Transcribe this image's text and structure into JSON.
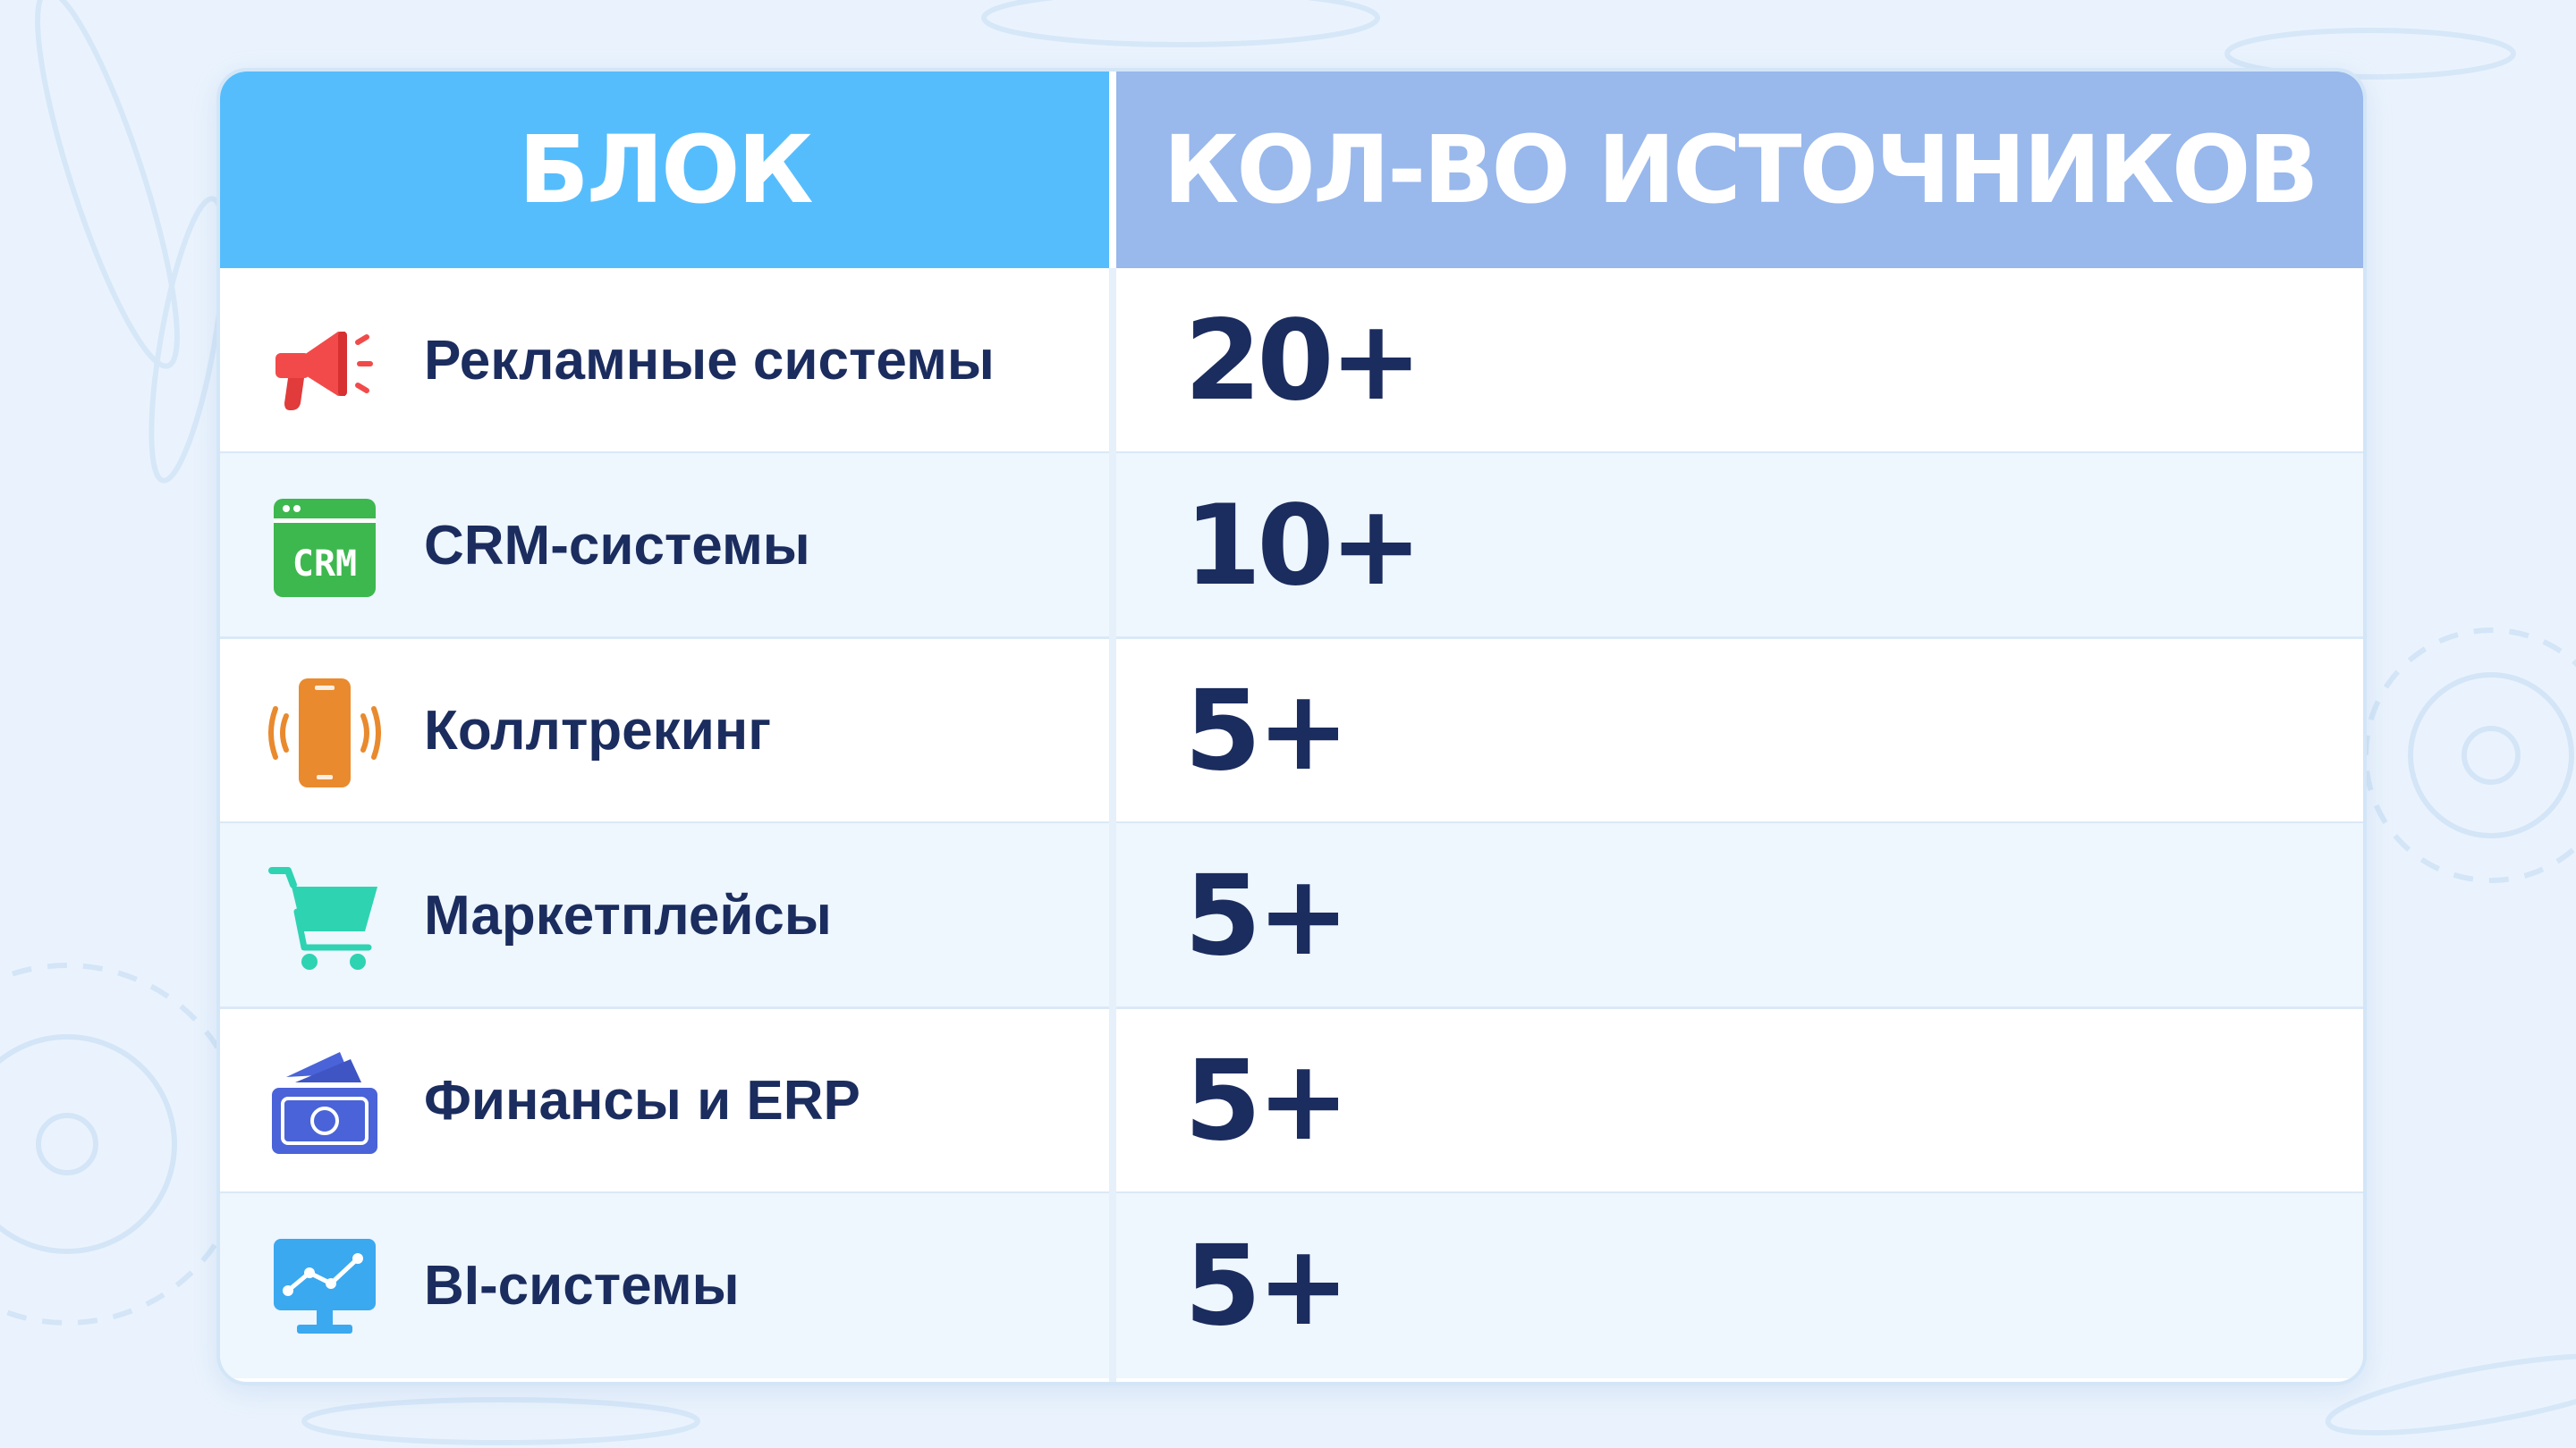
{
  "table": {
    "headers": {
      "block": "БЛОК",
      "count": "КОЛ-ВО ИСТОЧНИКОВ"
    },
    "rows": [
      {
        "icon": "megaphone-icon",
        "icon_color": "#f24a4a",
        "label": "Рекламные системы",
        "value": "20+"
      },
      {
        "icon": "crm-icon",
        "icon_color": "#3db84f",
        "label": "CRM-системы",
        "value": "10+"
      },
      {
        "icon": "phone-vibrate-icon",
        "icon_color": "#e98a2e",
        "label": "Коллтрекинг",
        "value": "5+"
      },
      {
        "icon": "shopping-cart-icon",
        "icon_color": "#2ed3b2",
        "label": "Маркетплейсы",
        "value": "5+"
      },
      {
        "icon": "money-icon",
        "icon_color": "#4a63d8",
        "label": "Финансы и ERP",
        "value": "5+"
      },
      {
        "icon": "monitor-chart-icon",
        "icon_color": "#3aa9f0",
        "label": "BI-системы",
        "value": "5+"
      }
    ]
  },
  "colors": {
    "header_left": "#56bdfd",
    "header_right": "#99b8ec",
    "text_dark": "#1b2c5e",
    "background": "#eaf3fd"
  },
  "icon_texts": {
    "crm": "CRM"
  }
}
